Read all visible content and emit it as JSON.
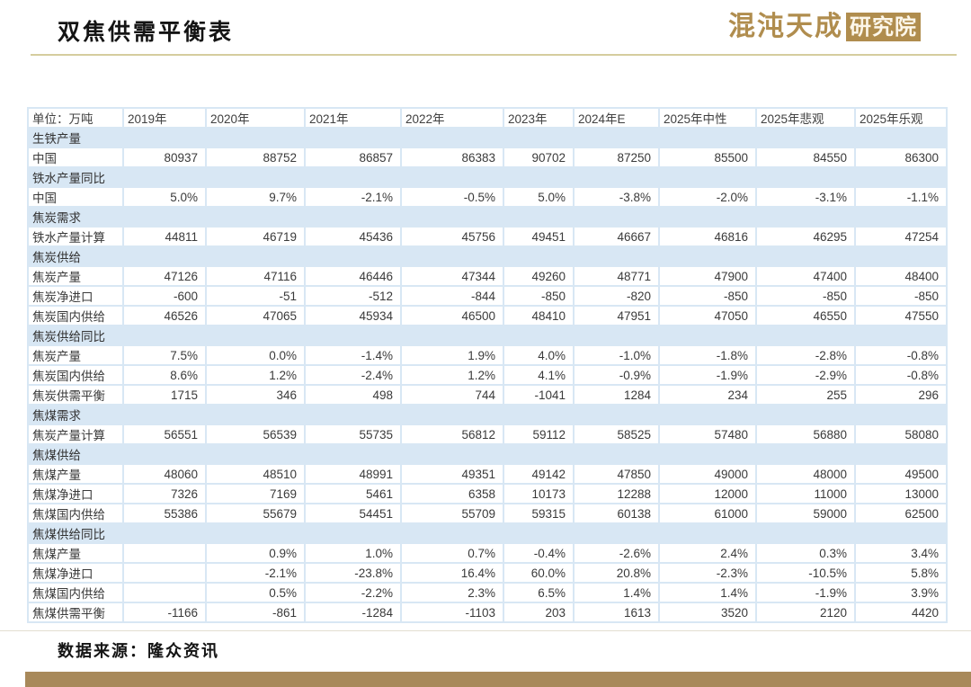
{
  "page": {
    "title": "双焦供需平衡表",
    "logo": {
      "script_text": "混沌天成",
      "badge_text": "研究院"
    },
    "footer": {
      "source": "数据来源：隆众资讯"
    }
  },
  "colors": {
    "accent_gold": "#b08d4e",
    "band_blue": "#d8e7f4",
    "bottom_bar_tan": "#a8895a",
    "title_rule_tan": "#d5cd9e"
  },
  "table": {
    "unit_label": "单位：万吨",
    "columns": [
      "2019年",
      "2020年",
      "2021年",
      "2022年",
      "2023年",
      "2024年E",
      "2025年中性",
      "2025年悲观",
      "2025年乐观"
    ],
    "rows": [
      {
        "type": "section",
        "label": "生铁产量"
      },
      {
        "type": "data",
        "label": "中国",
        "values": [
          "80937",
          "88752",
          "86857",
          "86383",
          "90702",
          "87250",
          "85500",
          "84550",
          "86300"
        ]
      },
      {
        "type": "section",
        "label": "铁水产量同比"
      },
      {
        "type": "data",
        "label": "中国",
        "values": [
          "5.0%",
          "9.7%",
          "-2.1%",
          "-0.5%",
          "5.0%",
          "-3.8%",
          "-2.0%",
          "-3.1%",
          "-1.1%"
        ]
      },
      {
        "type": "section",
        "label": "焦炭需求"
      },
      {
        "type": "data",
        "label": "铁水产量计算",
        "values": [
          "44811",
          "46719",
          "45436",
          "45756",
          "49451",
          "46667",
          "46816",
          "46295",
          "47254"
        ]
      },
      {
        "type": "section",
        "label": "焦炭供给"
      },
      {
        "type": "data",
        "label": "焦炭产量",
        "values": [
          "47126",
          "47116",
          "46446",
          "47344",
          "49260",
          "48771",
          "47900",
          "47400",
          "48400"
        ]
      },
      {
        "type": "data",
        "label": "焦炭净进口",
        "values": [
          "-600",
          "-51",
          "-512",
          "-844",
          "-850",
          "-820",
          "-850",
          "-850",
          "-850"
        ]
      },
      {
        "type": "data",
        "label": "焦炭国内供给",
        "values": [
          "46526",
          "47065",
          "45934",
          "46500",
          "48410",
          "47951",
          "47050",
          "46550",
          "47550"
        ]
      },
      {
        "type": "section",
        "label": "焦炭供给同比"
      },
      {
        "type": "data",
        "label": "焦炭产量",
        "values": [
          "7.5%",
          "0.0%",
          "-1.4%",
          "1.9%",
          "4.0%",
          "-1.0%",
          "-1.8%",
          "-2.8%",
          "-0.8%"
        ]
      },
      {
        "type": "data",
        "label": "焦炭国内供给",
        "values": [
          "8.6%",
          "1.2%",
          "-2.4%",
          "1.2%",
          "4.1%",
          "-0.9%",
          "-1.9%",
          "-2.9%",
          "-0.8%"
        ]
      },
      {
        "type": "data",
        "label": "焦炭供需平衡",
        "values": [
          "1715",
          "346",
          "498",
          "744",
          "-1041",
          "1284",
          "234",
          "255",
          "296"
        ]
      },
      {
        "type": "section",
        "label": "焦煤需求"
      },
      {
        "type": "data",
        "label": "焦炭产量计算",
        "values": [
          "56551",
          "56539",
          "55735",
          "56812",
          "59112",
          "58525",
          "57480",
          "56880",
          "58080"
        ]
      },
      {
        "type": "section",
        "label": "焦煤供给"
      },
      {
        "type": "data",
        "label": "焦煤产量",
        "values": [
          "48060",
          "48510",
          "48991",
          "49351",
          "49142",
          "47850",
          "49000",
          "48000",
          "49500"
        ]
      },
      {
        "type": "data",
        "label": "焦煤净进口",
        "values": [
          "7326",
          "7169",
          "5461",
          "6358",
          "10173",
          "12288",
          "12000",
          "11000",
          "13000"
        ]
      },
      {
        "type": "data",
        "label": "焦煤国内供给",
        "values": [
          "55386",
          "55679",
          "54451",
          "55709",
          "59315",
          "60138",
          "61000",
          "59000",
          "62500"
        ]
      },
      {
        "type": "section",
        "label": "焦煤供给同比"
      },
      {
        "type": "data",
        "label": "焦煤产量",
        "values": [
          "",
          "0.9%",
          "1.0%",
          "0.7%",
          "-0.4%",
          "-2.6%",
          "2.4%",
          "0.3%",
          "3.4%"
        ]
      },
      {
        "type": "data",
        "label": "焦煤净进口",
        "values": [
          "",
          "-2.1%",
          "-23.8%",
          "16.4%",
          "60.0%",
          "20.8%",
          "-2.3%",
          "-10.5%",
          "5.8%"
        ]
      },
      {
        "type": "data",
        "label": "焦煤国内供给",
        "values": [
          "",
          "0.5%",
          "-2.2%",
          "2.3%",
          "6.5%",
          "1.4%",
          "1.4%",
          "-1.9%",
          "3.9%"
        ]
      },
      {
        "type": "data",
        "label": "焦煤供需平衡",
        "values": [
          "-1166",
          "-861",
          "-1284",
          "-1103",
          "203",
          "1613",
          "3520",
          "2120",
          "4420"
        ]
      }
    ]
  }
}
